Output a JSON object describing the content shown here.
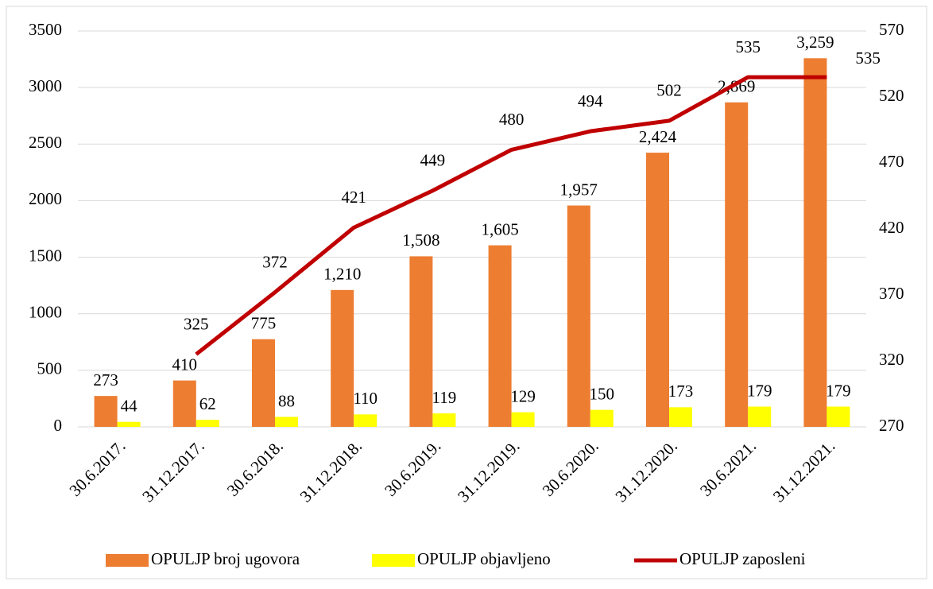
{
  "chart_data": {
    "type": "bar",
    "categories": [
      "30.6.2017.",
      "31.12.2017.",
      "30.6.2018.",
      "31.12.2018.",
      "30.6.2019.",
      "31.12.2019.",
      "30.6.2020.",
      "31.12.2020.",
      "30.6.2021.",
      "31.12.2021."
    ],
    "series": [
      {
        "name": "OPULJP broj ugovora",
        "color": "#ed7d31",
        "values": [
          273,
          410,
          775,
          1210,
          1508,
          1605,
          1957,
          2424,
          2869,
          3259
        ],
        "value_labels": [
          "273",
          "410",
          "775",
          "1,210",
          "1,508",
          "1,605",
          "1,957",
          "2,424",
          "2,869",
          "3,259"
        ]
      },
      {
        "name": "OPULJP objavljeno",
        "color": "#ffff00",
        "values": [
          44,
          62,
          88,
          110,
          119,
          129,
          150,
          173,
          179,
          179
        ]
      },
      {
        "name": "OPULJP zaposleni",
        "color": "#c00000",
        "type": "line",
        "axis": "y2",
        "values": [
          null,
          325,
          372,
          421,
          449,
          480,
          494,
          502,
          535,
          535
        ]
      }
    ],
    "ylim": [
      0,
      3500
    ],
    "yticks": [
      0,
      500,
      1000,
      1500,
      2000,
      2500,
      3000,
      3500
    ],
    "y2lim": [
      270,
      570
    ],
    "y2ticks": [
      270,
      320,
      370,
      420,
      470,
      520,
      570
    ],
    "grid": true,
    "legend": "bottom"
  }
}
